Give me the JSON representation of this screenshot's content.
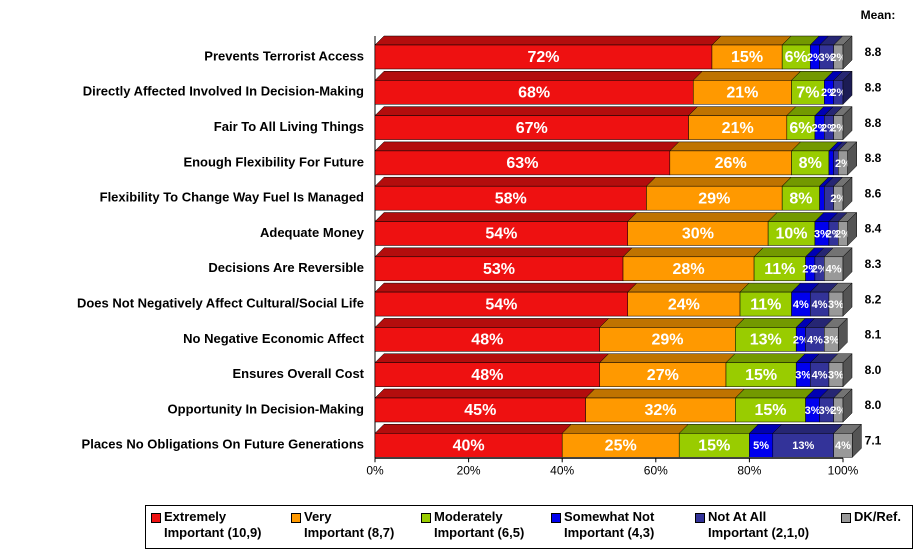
{
  "chart_data": {
    "type": "stacked_bar_horizontal",
    "categories": [
      "Prevents Terrorist Access",
      "Directly Affected Involved In Decision-Making",
      "Fair To All Living Things",
      "Enough Flexibility For Future",
      "Flexibility To Change Way Fuel Is Managed",
      "Adequate Money",
      "Decisions Are Reversible",
      "Does Not Negatively Affect Cultural/Social Life",
      "No Negative Economic Affect",
      "Ensures Overall Cost",
      "Opportunity In Decision-Making",
      "Places No Obligations On Future Generations"
    ],
    "series": [
      {
        "name": "Extremely\nImportant (10,9)",
        "color": "#ee1111",
        "values": [
          72,
          68,
          67,
          63,
          58,
          54,
          53,
          54,
          48,
          48,
          45,
          40
        ],
        "value_labels": [
          "72%",
          "68%",
          "67%",
          "63%",
          "58%",
          "54%",
          "53%",
          "54%",
          "48%",
          "48%",
          "45%",
          "40%"
        ]
      },
      {
        "name": "Very\nImportant (8,7)",
        "color": "#ff9900",
        "values": [
          15,
          21,
          21,
          26,
          29,
          30,
          28,
          24,
          29,
          27,
          32,
          25
        ],
        "value_labels": [
          "15%",
          "21%",
          "21%",
          "26%",
          "29%",
          "30%",
          "28%",
          "24%",
          "29%",
          "27%",
          "32%",
          "25%"
        ]
      },
      {
        "name": "Moderately\nImportant (6,5)",
        "color": "#99cc00",
        "values": [
          6,
          7,
          6,
          8,
          8,
          10,
          11,
          11,
          13,
          15,
          15,
          15
        ],
        "value_labels": [
          "6%",
          "7%",
          "6%",
          "8%",
          "8%",
          "10%",
          "11%",
          "11%",
          "13%",
          "15%",
          "15%",
          "15%"
        ]
      },
      {
        "name": "Somewhat Not\nImportant (4,3)",
        "color": "#0000ee",
        "values": [
          2,
          2,
          2,
          1,
          1,
          3,
          2,
          4,
          2,
          3,
          3,
          5
        ],
        "value_labels": [
          "2%",
          "2%",
          "2%",
          null,
          null,
          "3%",
          "2%",
          "4%",
          "2%",
          "3%",
          "3%",
          "5%"
        ]
      },
      {
        "name": "Not At All\nImportant (2,1,0)",
        "color": "#333399",
        "values": [
          3,
          2,
          2,
          1,
          2,
          2,
          2,
          4,
          4,
          4,
          3,
          13
        ],
        "value_labels": [
          "3%",
          "2%",
          "2%",
          null,
          null,
          "2%",
          "2%",
          "4%",
          "4%",
          "4%",
          "3%",
          "13%"
        ]
      },
      {
        "name": "DK/Ref.",
        "color": "#999999",
        "values": [
          2,
          null,
          2,
          2,
          2,
          2,
          4,
          3,
          3,
          3,
          2,
          4
        ],
        "value_labels": [
          "2%",
          null,
          "2%",
          "2%",
          "2%",
          "2%",
          "4%",
          "3%",
          "3%",
          "3%",
          "2%",
          "4%"
        ]
      }
    ],
    "mean_label": "Mean:",
    "means": [
      8.8,
      8.8,
      8.8,
      8.8,
      8.6,
      8.4,
      8.3,
      8.2,
      8.1,
      8.0,
      8.0,
      7.1
    ],
    "mean_labels": [
      "8.8",
      "8.8",
      "8.8",
      "8.8",
      "8.6",
      "8.4",
      "8.3",
      "8.2",
      "8.1",
      "8.0",
      "8.0",
      "7.1"
    ],
    "xlim": [
      0,
      100
    ],
    "xticks": [
      {
        "value": 0,
        "label": "0%"
      },
      {
        "value": 20,
        "label": "20%"
      },
      {
        "value": 40,
        "label": "40%"
      },
      {
        "value": 60,
        "label": "60%"
      },
      {
        "value": 80,
        "label": "80%"
      },
      {
        "value": 100,
        "label": "100%"
      }
    ]
  }
}
